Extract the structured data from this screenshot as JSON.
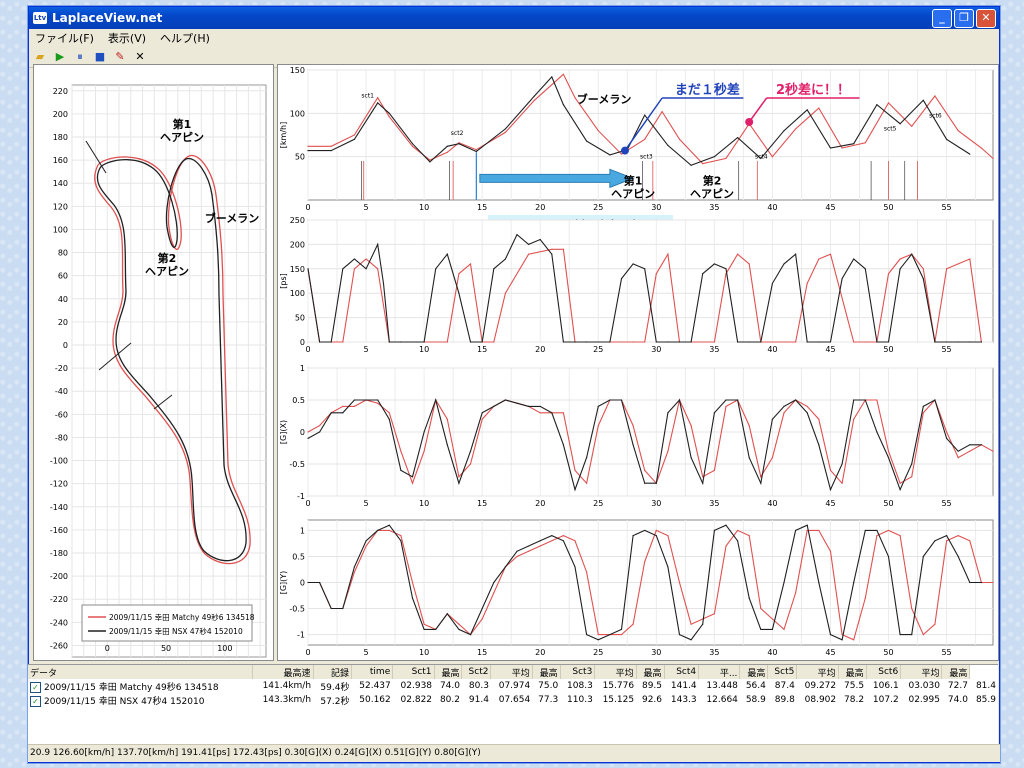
{
  "window": {
    "title": "LaplaceView.net",
    "app_icon": "Ltv"
  },
  "menu": [
    "ファイル(F)",
    "表示(V)",
    "ヘルプ(H)"
  ],
  "toolbar_icons": [
    "open-folder-icon",
    "play-icon",
    "pause-icon",
    "stop-icon",
    "pen-icon",
    "close-x-icon"
  ],
  "colors": {
    "red": "#e05050",
    "black": "#202020",
    "accent_blue": "#2244bb",
    "accent_pink": "#e0206a",
    "arrow_blue": "#4aa8e0"
  },
  "track_map": {
    "xticks": [
      0,
      50,
      100
    ],
    "yticks": [
      220,
      200,
      180,
      160,
      140,
      120,
      100,
      80,
      60,
      40,
      20,
      0,
      -20,
      -40,
      -60,
      -80,
      -100,
      -120,
      -140,
      -160,
      -180,
      -200,
      -220,
      -240,
      -260
    ],
    "labels": {
      "hairpin1": "第1\nヘアピン",
      "hairpin2": "第2\nヘアピン",
      "boomerang": "ブーメラン"
    },
    "legend": [
      "2009/11/15 幸田 Matchy 49秒6 134518",
      "2009/11/15 幸田 NSX 47秒4 152010"
    ]
  },
  "chart_data": [
    {
      "type": "line",
      "id": "speed",
      "ylabel": "[km/h]",
      "xlim": [
        0,
        59
      ],
      "ylim": [
        0,
        150
      ],
      "yticks": [
        50,
        100,
        150
      ],
      "xticks": [
        0,
        5,
        10,
        15,
        20,
        25,
        30,
        35,
        40,
        45,
        50,
        55
      ],
      "sector_labels": [
        "sct1",
        "sct2",
        "sct3",
        "sct4",
        "sct5",
        "sct6"
      ],
      "annotations": [
        "まだ１秒差",
        "2秒差に！！",
        "ブーメラン",
        "第1\nヘアピン",
        "第2\nヘアピン",
        "ココから差が広がる"
      ],
      "series": [
        {
          "name": "NSX",
          "color": "#202020",
          "x": [
            0,
            2,
            4,
            6,
            7,
            9,
            10.5,
            12,
            13,
            14.5,
            17,
            19.5,
            21,
            22,
            24,
            26,
            27.5,
            29,
            31,
            33,
            35,
            37,
            39,
            41,
            43,
            45,
            47,
            49,
            51,
            53,
            55,
            57
          ],
          "y": [
            57,
            57,
            70,
            112,
            100,
            65,
            44,
            62,
            65,
            56,
            82,
            120,
            142,
            110,
            68,
            52,
            58,
            98,
            63,
            40,
            50,
            72,
            48,
            80,
            104,
            60,
            65,
            110,
            88,
            115,
            70,
            53
          ]
        },
        {
          "name": "Matchy",
          "color": "#e05050",
          "x": [
            0,
            2,
            4,
            6,
            7,
            9,
            10.5,
            12,
            13,
            14.5,
            17,
            19.5,
            22,
            23,
            25,
            27,
            29,
            30.5,
            32,
            34,
            36,
            38,
            40,
            42,
            44,
            46,
            48,
            50,
            52,
            54,
            56,
            58,
            59
          ],
          "y": [
            62,
            62,
            75,
            118,
            96,
            62,
            46,
            55,
            66,
            58,
            78,
            115,
            145,
            118,
            80,
            53,
            70,
            102,
            70,
            42,
            48,
            88,
            50,
            82,
            106,
            60,
            66,
            112,
            85,
            120,
            80,
            60,
            48
          ]
        }
      ]
    },
    {
      "type": "line",
      "id": "throttle",
      "ylabel": "[ps]",
      "xlim": [
        0,
        59
      ],
      "ylim": [
        0,
        250
      ],
      "yticks": [
        0,
        50,
        100,
        150,
        200,
        250
      ],
      "xticks": [
        0,
        5,
        10,
        15,
        20,
        25,
        30,
        35,
        40,
        45,
        50,
        55
      ],
      "series": [
        {
          "name": "NSX",
          "color": "#202020",
          "x": [
            0,
            1,
            2,
            3,
            3.5,
            4,
            5,
            6,
            6.5,
            7,
            8,
            10,
            11,
            12,
            13,
            14,
            15,
            16,
            17,
            18,
            19,
            20,
            21,
            22,
            23,
            24,
            26,
            27,
            28,
            29,
            30,
            31,
            32,
            33,
            34,
            35,
            36,
            37,
            38,
            39,
            40,
            41,
            42,
            43,
            44,
            45,
            46,
            47,
            48,
            49,
            50,
            51,
            52,
            53,
            54,
            55,
            56,
            57,
            58
          ],
          "y": [
            150,
            0,
            0,
            150,
            160,
            170,
            150,
            200,
            120,
            0,
            0,
            0,
            150,
            180,
            100,
            0,
            0,
            150,
            170,
            220,
            200,
            210,
            180,
            0,
            0,
            0,
            0,
            130,
            160,
            150,
            0,
            0,
            0,
            0,
            140,
            160,
            150,
            0,
            0,
            0,
            120,
            160,
            180,
            0,
            0,
            0,
            130,
            170,
            150,
            0,
            0,
            150,
            180,
            130,
            0,
            0,
            0,
            0,
            0
          ]
        },
        {
          "name": "Matchy",
          "color": "#e05050",
          "x": [
            0,
            1,
            2,
            3,
            4,
            4.5,
            5,
            6,
            7,
            8,
            10,
            12,
            13,
            14,
            15,
            16,
            17,
            19,
            21,
            22,
            23,
            24,
            26,
            28,
            29,
            30,
            31,
            32,
            33,
            35,
            36,
            37,
            38,
            39,
            41,
            42,
            43,
            44,
            45,
            47,
            48,
            49,
            50,
            51,
            52,
            53,
            54,
            55,
            56,
            57,
            58
          ],
          "y": [
            150,
            0,
            0,
            0,
            150,
            160,
            170,
            150,
            0,
            0,
            0,
            0,
            140,
            160,
            0,
            0,
            100,
            180,
            190,
            190,
            0,
            0,
            0,
            0,
            0,
            140,
            180,
            0,
            0,
            0,
            140,
            180,
            160,
            0,
            0,
            0,
            120,
            170,
            180,
            0,
            0,
            0,
            140,
            170,
            180,
            150,
            0,
            150,
            160,
            170,
            0
          ]
        }
      ]
    },
    {
      "type": "line",
      "id": "g-lat",
      "ylabel": "[G](X)",
      "xlim": [
        0,
        59
      ],
      "ylim": [
        -1,
        1
      ],
      "yticks": [
        -1,
        -0.5,
        0,
        0.5,
        1
      ],
      "xticks": [
        0,
        5,
        10,
        15,
        20,
        25,
        30,
        35,
        40,
        45,
        50,
        55
      ],
      "series": [
        {
          "name": "NSX",
          "color": "#202020",
          "x": [
            0,
            1,
            2,
            3,
            4,
            5,
            6,
            7,
            8,
            9,
            10,
            11,
            12,
            13,
            14,
            15,
            16,
            17,
            18,
            19,
            20,
            21,
            22,
            23,
            24,
            25,
            26,
            27,
            28,
            29,
            30,
            31,
            32,
            33,
            34,
            35,
            36,
            37,
            38,
            39,
            40,
            41,
            42,
            43,
            44,
            45,
            46,
            47,
            48,
            49,
            50,
            51,
            52,
            53,
            54,
            55,
            56,
            57,
            58
          ],
          "y": [
            -0.1,
            0,
            0.3,
            0.3,
            0.5,
            0.5,
            0.5,
            0.2,
            -0.6,
            -0.7,
            0,
            0.5,
            -0.2,
            -0.8,
            -0.3,
            0.3,
            0.4,
            0.5,
            0.45,
            0.4,
            0.4,
            0.3,
            -0.2,
            -0.9,
            -0.4,
            0.4,
            0.5,
            0.5,
            -0.2,
            -0.8,
            -0.8,
            0.3,
            0.5,
            -0.4,
            -0.8,
            0.3,
            0.5,
            0.5,
            -0.4,
            -0.8,
            0.2,
            0.4,
            0.5,
            0.3,
            -0.2,
            -0.9,
            -0.5,
            0.5,
            0.5,
            0,
            -0.4,
            -0.9,
            -0.5,
            0.4,
            0.5,
            -0.1,
            -0.3,
            -0.2,
            -0.2
          ]
        },
        {
          "name": "Matchy",
          "color": "#e05050",
          "x": [
            0,
            1,
            2,
            3,
            4,
            5,
            6,
            7,
            8,
            9,
            10,
            11,
            12,
            13,
            14,
            15,
            16,
            17,
            18,
            19,
            20,
            21,
            22,
            23,
            24,
            25,
            26,
            27,
            28,
            29,
            30,
            31,
            32,
            33,
            34,
            35,
            36,
            37,
            38,
            39,
            40,
            41,
            42,
            43,
            44,
            45,
            46,
            47,
            48,
            49,
            50,
            51,
            52,
            53,
            54,
            55,
            56,
            57,
            58,
            59
          ],
          "y": [
            0,
            0.1,
            0.3,
            0.4,
            0.4,
            0.5,
            0.45,
            0.3,
            -0.3,
            -0.8,
            -0.3,
            0.5,
            0.2,
            -0.7,
            -0.5,
            0.2,
            0.4,
            0.5,
            0.45,
            0.4,
            0.3,
            0.3,
            0.3,
            -0.6,
            -0.8,
            0.1,
            0.5,
            0.5,
            0.1,
            -0.6,
            -0.8,
            -0.3,
            0.5,
            0.1,
            -0.7,
            -0.6,
            0.4,
            0.5,
            0.1,
            -0.7,
            -0.4,
            0.3,
            0.5,
            0.4,
            0.2,
            -0.6,
            -0.8,
            0.2,
            0.5,
            0.5,
            -0.3,
            -0.8,
            -0.7,
            0.3,
            0.5,
            0,
            -0.4,
            -0.3,
            -0.2,
            -0.3
          ]
        }
      ]
    },
    {
      "type": "line",
      "id": "g-long",
      "ylabel": "[G](Y)",
      "xlim": [
        0,
        59
      ],
      "ylim": [
        -1.2,
        1.2
      ],
      "yticks": [
        -1,
        -0.5,
        0,
        0.5,
        1
      ],
      "xticks": [
        0,
        5,
        10,
        15,
        20,
        25,
        30,
        35,
        40,
        45,
        50,
        55
      ],
      "series": [
        {
          "name": "NSX",
          "color": "#202020",
          "x": [
            0,
            1,
            2,
            3,
            4,
            5,
            6,
            7,
            8,
            9,
            10,
            11,
            12,
            13,
            14,
            15,
            16,
            17,
            18,
            19,
            20,
            21,
            22,
            23,
            24,
            25,
            26,
            27,
            28,
            29,
            30,
            31,
            32,
            33,
            34,
            35,
            36,
            37,
            38,
            39,
            40,
            41,
            42,
            43,
            44,
            45,
            46,
            47,
            48,
            49,
            50,
            51,
            52,
            53,
            54,
            55,
            56,
            57,
            57.5,
            58
          ],
          "y": [
            0,
            0,
            -0.5,
            -0.5,
            0.3,
            0.8,
            1,
            1.1,
            0.8,
            -0.3,
            -0.9,
            -0.9,
            -0.6,
            -0.9,
            -1,
            -0.5,
            0,
            0.3,
            0.6,
            0.7,
            0.8,
            0.9,
            0.8,
            0.3,
            -1,
            -1.1,
            -1,
            -0.9,
            0.9,
            1,
            0.9,
            0.3,
            -1,
            -1.1,
            -0.8,
            1,
            1.1,
            0.8,
            -0.3,
            -0.9,
            -0.9,
            0,
            1,
            1.1,
            0,
            -1,
            -1.1,
            0,
            1,
            1,
            0.5,
            -1,
            -1,
            0.5,
            0.8,
            0.9,
            0.5,
            0,
            0,
            0
          ]
        },
        {
          "name": "Matchy",
          "color": "#e05050",
          "x": [
            0,
            1,
            2,
            3,
            4,
            5,
            6,
            7,
            8,
            9,
            10,
            11,
            12,
            13,
            14,
            15,
            16,
            17,
            18,
            19,
            20,
            21,
            22,
            23,
            24,
            25,
            26,
            27,
            28,
            29,
            30,
            31,
            32,
            33,
            34,
            35,
            36,
            37,
            38,
            39,
            40,
            41,
            42,
            43,
            44,
            45,
            46,
            47,
            48,
            49,
            50,
            51,
            52,
            53,
            54,
            55,
            56,
            57,
            58,
            59
          ],
          "y": [
            0,
            0,
            -0.5,
            -0.5,
            0.2,
            0.7,
            1,
            1,
            0.9,
            0,
            -0.8,
            -0.9,
            -0.6,
            -0.8,
            -1,
            -0.7,
            -0.2,
            0.3,
            0.5,
            0.6,
            0.7,
            0.8,
            0.9,
            0.8,
            0.2,
            -1,
            -1,
            -1,
            -0.8,
            0.4,
            1,
            0.9,
            0,
            -0.8,
            -0.7,
            -0.6,
            0.7,
            1,
            0.9,
            -0.5,
            -0.7,
            -0.9,
            -0.2,
            1,
            1,
            0.6,
            -1,
            -1.1,
            -0.3,
            0.9,
            1,
            0.9,
            -0.5,
            -1,
            -0.8,
            0.8,
            0.9,
            0.8,
            0,
            0
          ]
        }
      ]
    }
  ],
  "table": {
    "headers": [
      "データ",
      "最高速",
      "記録",
      "time",
      "Sct1",
      "最高",
      "Sct2",
      "平均",
      "最高",
      "Sct3",
      "平均",
      "最高",
      "Sct4",
      "平...",
      "最高",
      "Sct5",
      "平均",
      "最高",
      "Sct6",
      "平均",
      "最高"
    ],
    "rows": [
      [
        "2009/11/15 幸田 Matchy 49秒6 134518",
        "141.4km/h",
        "59.4秒",
        "52.437",
        "02.938",
        "74.0",
        "80.3",
        "07.974",
        "75.0",
        "108.3",
        "15.776",
        "89.5",
        "141.4",
        "13.448",
        "56.4",
        "87.4",
        "09.272",
        "75.5",
        "106.1",
        "03.030",
        "72.7",
        "81.4"
      ],
      [
        "2009/11/15 幸田 NSX 47秒4 152010",
        "143.3km/h",
        "57.2秒",
        "50.162",
        "02.822",
        "80.2",
        "91.4",
        "07.654",
        "77.3",
        "110.3",
        "15.125",
        "92.6",
        "143.3",
        "12.664",
        "58.9",
        "89.8",
        "08.902",
        "78.2",
        "107.2",
        "02.995",
        "74.0",
        "85.9"
      ]
    ]
  },
  "status": "20.9 126.60[km/h] 137.70[km/h]  191.41[ps] 172.43[ps]  0.30[G](X) 0.24[G](X)  0.51[G](Y) 0.80[G](Y)"
}
